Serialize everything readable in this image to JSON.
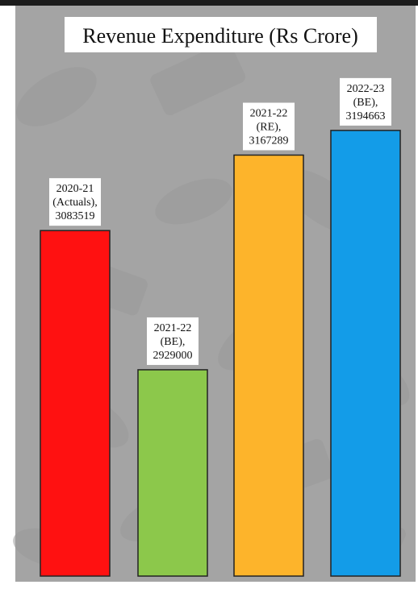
{
  "chart_data": {
    "type": "bar",
    "title": "Revenue Expenditure (Rs Crore)",
    "categories": [
      "2020-21 (Actuals)",
      "2021-22 (BE)",
      "2021-22 (RE)",
      "2022-23 (BE)"
    ],
    "values": [
      3083519,
      2929000,
      3167289,
      3194663
    ],
    "data_labels": [
      [
        "2020-21",
        "(Actuals),",
        "3083519"
      ],
      [
        "2021-22",
        "(BE),",
        "2929000"
      ],
      [
        "2021-22",
        "(RE),",
        "3167289"
      ],
      [
        "2022-23",
        "(BE),",
        "3194663"
      ]
    ],
    "colors": [
      "#ff1111",
      "#8cc84b",
      "#fdb42b",
      "#139ce8"
    ],
    "ylim": [
      2700000,
      3250000
    ],
    "grid": false,
    "legend": "none",
    "background": "#a4a4a4",
    "frame_color": "#1c1c1c"
  }
}
